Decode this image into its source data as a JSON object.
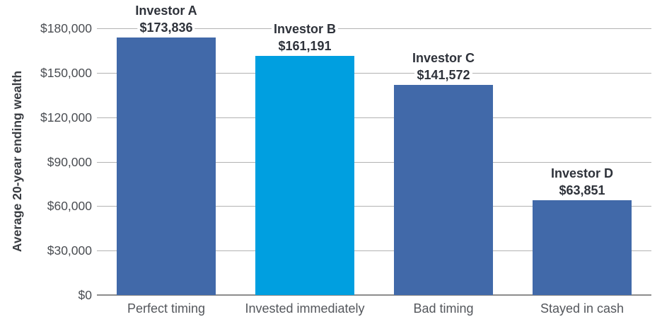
{
  "page": {
    "background": "#ffffff"
  },
  "colors": {
    "bar_default": "#4169A9",
    "bar_highlight": "#009FE0",
    "gridline": "#b3b3b3",
    "axis_line": "#8c8c8c",
    "annotation_text": "#2e323a",
    "tick_text": "#4a4d52",
    "x_label_text": "#54575c"
  },
  "chart_data": {
    "type": "bar",
    "title": "",
    "xlabel": "",
    "ylabel": "Average 20-year ending wealth",
    "ylim": [
      0,
      180000
    ],
    "grid": "horizontal",
    "legend": "none",
    "categories": [
      "Perfect timing",
      "Invested immediately",
      "Bad timing",
      "Stayed in cash"
    ],
    "values": [
      173836,
      161191,
      141572,
      63851
    ],
    "bar_colors": [
      "#4169A9",
      "#009FE0",
      "#4169A9",
      "#4169A9"
    ],
    "bar_annotations": [
      {
        "name": "Investor A",
        "amount": "$173,836"
      },
      {
        "name": "Investor B",
        "amount": "$161,191"
      },
      {
        "name": "Investor C",
        "amount": "$141,572"
      },
      {
        "name": "Investor D",
        "amount": "$63,851"
      }
    ],
    "yticks": [
      {
        "value": 0,
        "label": "$0"
      },
      {
        "value": 30000,
        "label": "$30,000"
      },
      {
        "value": 60000,
        "label": "$60,000"
      },
      {
        "value": 90000,
        "label": "$90,000"
      },
      {
        "value": 120000,
        "label": "$120,000"
      },
      {
        "value": 150000,
        "label": "$150,000"
      },
      {
        "value": 180000,
        "label": "$180,000"
      }
    ]
  }
}
